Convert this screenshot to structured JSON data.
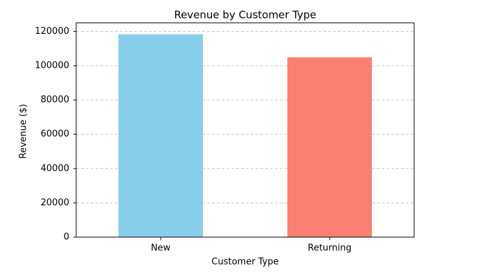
{
  "chart_data": {
    "type": "bar",
    "title": "Revenue by Customer Type",
    "x_label": "Customer Type",
    "y_label": "Revenue ($)",
    "categories": [
      "New",
      "Returning"
    ],
    "values": [
      118300,
      104900
    ],
    "colors": [
      "#87ceeb",
      "#fa8072"
    ],
    "ylim": [
      0,
      125000
    ],
    "yticks": [
      0,
      20000,
      40000,
      60000,
      80000,
      100000,
      120000
    ],
    "grid": true
  }
}
